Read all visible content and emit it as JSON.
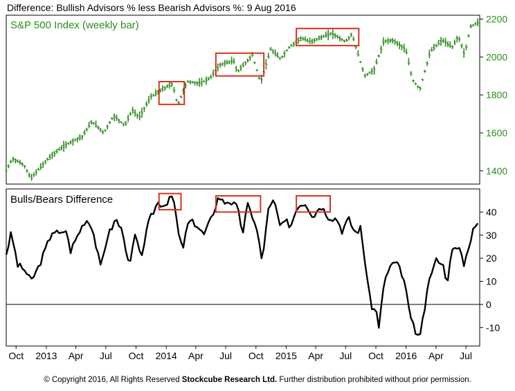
{
  "title": "Difference: Bullish Advisors % less Bearish Advisors %: 9 Aug 2016",
  "footer": {
    "prefix": "© Copyright 2016, All Rights Reserved ",
    "company": "Stockcube Research Ltd.",
    "suffix": " Further distribution prohibited without prior permission."
  },
  "colors": {
    "price": "#2e8b1f",
    "line": "#000000",
    "highlight": "#d9321e",
    "axis_text_top": "#2e8b1f"
  },
  "x_axis": {
    "ticks": [
      "Oct",
      "2013",
      "Apr",
      "Jul",
      "Oct",
      "2014",
      "Apr",
      "Jul",
      "Oct",
      "2015",
      "Apr",
      "Jul",
      "Oct",
      "2016",
      "Apr",
      "Jul"
    ]
  },
  "chart_data": [
    {
      "type": "bar",
      "title": "S&P 500 Index (weekly bar)",
      "ylim": [
        1330,
        2220
      ],
      "yticks": [
        1400,
        1600,
        1800,
        2000,
        2200
      ],
      "x_range": [
        "Sep 2012",
        "Aug 2016"
      ],
      "anchors": [
        [
          "2012-09-01",
          1400
        ],
        [
          "2012-09-20",
          1465
        ],
        [
          "2012-10-25",
          1430
        ],
        [
          "2012-11-15",
          1360
        ],
        [
          "2012-12-15",
          1420
        ],
        [
          "2013-01-10",
          1470
        ],
        [
          "2013-02-15",
          1520
        ],
        [
          "2013-03-20",
          1555
        ],
        [
          "2013-04-20",
          1580
        ],
        [
          "2013-05-20",
          1660
        ],
        [
          "2013-06-25",
          1600
        ],
        [
          "2013-07-25",
          1690
        ],
        [
          "2013-08-28",
          1640
        ],
        [
          "2013-09-20",
          1720
        ],
        [
          "2013-10-10",
          1680
        ],
        [
          "2013-11-15",
          1790
        ],
        [
          "2013-12-31",
          1840
        ],
        [
          "2014-01-20",
          1860
        ],
        [
          "2014-02-05",
          1745
        ],
        [
          "2014-03-05",
          1870
        ],
        [
          "2014-04-15",
          1860
        ],
        [
          "2014-05-15",
          1890
        ],
        [
          "2014-06-15",
          1960
        ],
        [
          "2014-07-25",
          1980
        ],
        [
          "2014-08-05",
          1920
        ],
        [
          "2014-09-20",
          2010
        ],
        [
          "2014-10-15",
          1865
        ],
        [
          "2014-11-15",
          2040
        ],
        [
          "2014-12-15",
          1990
        ],
        [
          "2015-01-10",
          2050
        ],
        [
          "2015-02-15",
          2100
        ],
        [
          "2015-03-15",
          2080
        ],
        [
          "2015-05-20",
          2125
        ],
        [
          "2015-06-30",
          2080
        ],
        [
          "2015-07-20",
          2120
        ],
        [
          "2015-08-28",
          1900
        ],
        [
          "2015-09-25",
          1930
        ],
        [
          "2015-10-25",
          2080
        ],
        [
          "2015-11-20",
          2090
        ],
        [
          "2015-12-31",
          2040
        ],
        [
          "2016-01-20",
          1880
        ],
        [
          "2016-02-12",
          1830
        ],
        [
          "2016-03-15",
          2030
        ],
        [
          "2016-04-20",
          2090
        ],
        [
          "2016-05-20",
          2050
        ],
        [
          "2016-06-08",
          2110
        ],
        [
          "2016-06-27",
          2010
        ],
        [
          "2016-07-15",
          2160
        ],
        [
          "2016-08-09",
          2185
        ]
      ],
      "highlights": [
        [
          "2013-12-10",
          "2014-02-25",
          1750,
          1870
        ],
        [
          "2014-06-01",
          "2014-10-25",
          1900,
          2020
        ],
        [
          "2015-02-01",
          "2015-08-10",
          2060,
          2150
        ]
      ]
    },
    {
      "type": "line",
      "title": "Bulls/Bears Difference",
      "ylim": [
        -18,
        50
      ],
      "yticks": [
        -10,
        0,
        10,
        20,
        30,
        40
      ],
      "x_range": [
        "Sep 2012",
        "Aug 2016"
      ],
      "points": [
        [
          "2012-09-01",
          22
        ],
        [
          "2012-09-15",
          30
        ],
        [
          "2012-09-22",
          27
        ],
        [
          "2012-10-06",
          17
        ],
        [
          "2012-10-27",
          15
        ],
        [
          "2012-11-15",
          10
        ],
        [
          "2012-12-08",
          16
        ],
        [
          "2012-12-30",
          24
        ],
        [
          "2013-01-20",
          32
        ],
        [
          "2013-02-15",
          30
        ],
        [
          "2013-03-01",
          33
        ],
        [
          "2013-03-15",
          23
        ],
        [
          "2013-04-10",
          31
        ],
        [
          "2013-05-01",
          37
        ],
        [
          "2013-05-20",
          34
        ],
        [
          "2013-06-15",
          16
        ],
        [
          "2013-07-05",
          29
        ],
        [
          "2013-08-01",
          37
        ],
        [
          "2013-08-25",
          30
        ],
        [
          "2013-09-10",
          15
        ],
        [
          "2013-09-28",
          30
        ],
        [
          "2013-10-15",
          20
        ],
        [
          "2013-11-10",
          36
        ],
        [
          "2013-12-05",
          44
        ],
        [
          "2013-12-31",
          43
        ],
        [
          "2014-01-10",
          47
        ],
        [
          "2014-01-25",
          44
        ],
        [
          "2014-02-10",
          28
        ],
        [
          "2014-02-20",
          24
        ],
        [
          "2014-03-10",
          36
        ],
        [
          "2014-04-01",
          35
        ],
        [
          "2014-04-25",
          30
        ],
        [
          "2014-05-15",
          36
        ],
        [
          "2014-06-10",
          47
        ],
        [
          "2014-06-25",
          44
        ],
        [
          "2014-07-10",
          45
        ],
        [
          "2014-08-05",
          42
        ],
        [
          "2014-08-22",
          31
        ],
        [
          "2014-09-05",
          43
        ],
        [
          "2014-09-25",
          37
        ],
        [
          "2014-10-10",
          28
        ],
        [
          "2014-10-20",
          17
        ],
        [
          "2014-11-05",
          40
        ],
        [
          "2014-11-25",
          45
        ],
        [
          "2014-12-15",
          33
        ],
        [
          "2014-12-31",
          36
        ],
        [
          "2015-01-15",
          34
        ],
        [
          "2015-02-05",
          43
        ],
        [
          "2015-03-01",
          44
        ],
        [
          "2015-03-25",
          38
        ],
        [
          "2015-04-15",
          43
        ],
        [
          "2015-05-10",
          38
        ],
        [
          "2015-06-05",
          37
        ],
        [
          "2015-06-20",
          32
        ],
        [
          "2015-07-10",
          37
        ],
        [
          "2015-07-30",
          31
        ],
        [
          "2015-08-15",
          33
        ],
        [
          "2015-08-28",
          20
        ],
        [
          "2015-09-15",
          0
        ],
        [
          "2015-10-05",
          -4
        ],
        [
          "2015-10-12",
          -11
        ],
        [
          "2015-10-20",
          4
        ],
        [
          "2015-11-05",
          14
        ],
        [
          "2015-11-20",
          18
        ],
        [
          "2015-12-10",
          17
        ],
        [
          "2015-12-31",
          7
        ],
        [
          "2016-01-15",
          -7
        ],
        [
          "2016-02-01",
          -12
        ],
        [
          "2016-02-12",
          -15
        ],
        [
          "2016-02-25",
          -3
        ],
        [
          "2016-03-15",
          13
        ],
        [
          "2016-04-05",
          20
        ],
        [
          "2016-04-20",
          18
        ],
        [
          "2016-05-05",
          10
        ],
        [
          "2016-05-20",
          23
        ],
        [
          "2016-06-10",
          25
        ],
        [
          "2016-06-27",
          17
        ],
        [
          "2016-07-10",
          26
        ],
        [
          "2016-07-25",
          33
        ],
        [
          "2016-08-09",
          34
        ]
      ],
      "highlights": [
        [
          "2013-12-10",
          "2014-02-15",
          41,
          48
        ],
        [
          "2014-06-01",
          "2014-10-15",
          40,
          47
        ],
        [
          "2015-02-01",
          "2015-05-15",
          40,
          47
        ]
      ]
    }
  ]
}
